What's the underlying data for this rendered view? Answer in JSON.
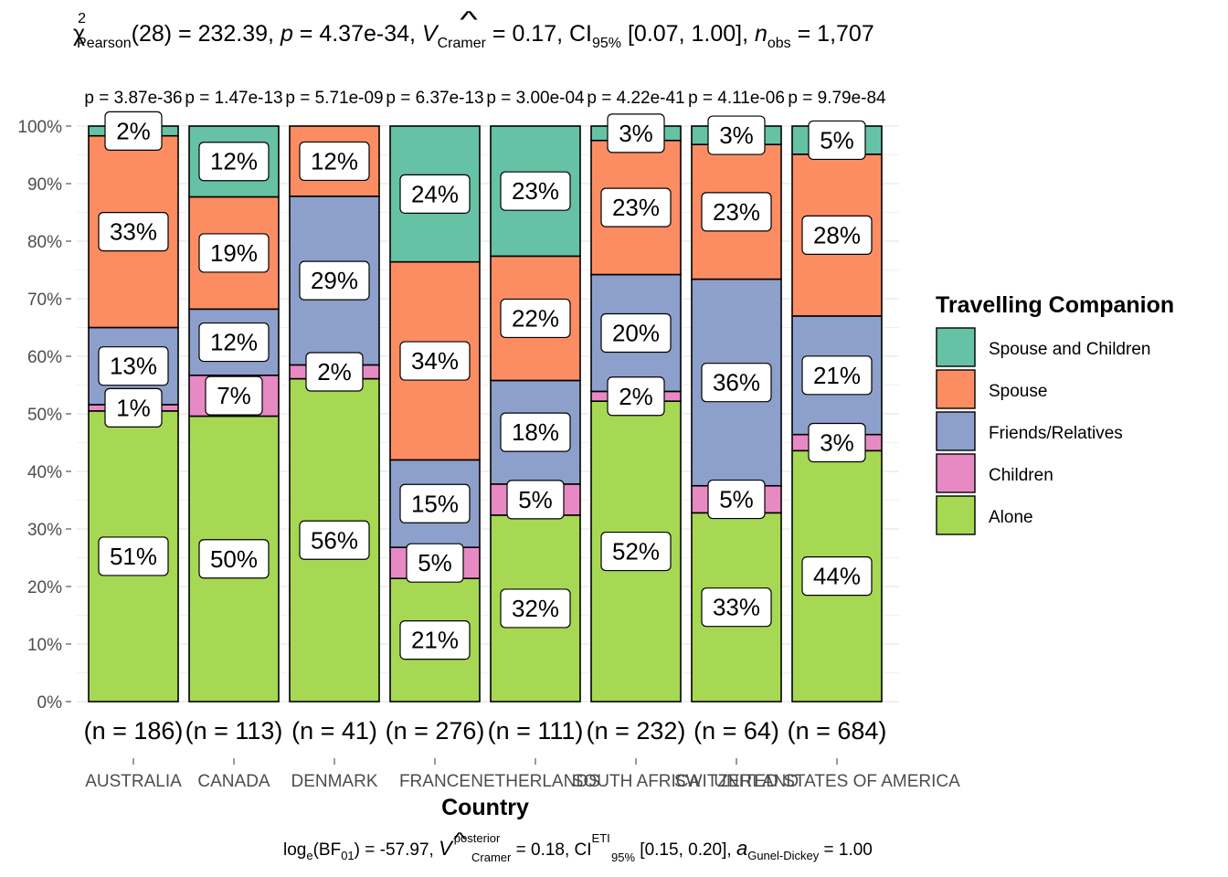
{
  "subtitle": {
    "chi": "χ",
    "chi_sup": "2",
    "chi_sub": "Pearson",
    "df_stat": "(28) = 232.39, ",
    "p_sym": "p",
    "p_val": " = 4.37e-34, ",
    "v_sym": "V",
    "v_hat": "^",
    "v_sub": "Cramer",
    "v_val": " = 0.17, CI",
    "ci_sub": "95%",
    "ci_val": " [0.07, 1.00], ",
    "n_sym": "n",
    "n_sub": "obs",
    "n_val": " = 1,707"
  },
  "caption": {
    "log": "log",
    "log_sub": "e",
    "bf": "(BF",
    "bf_sub": "01",
    "bf_val": ") = -57.97, ",
    "v_sym": "V",
    "v_sup": "posterior",
    "v_sub": "Cramer",
    "v_val": " = 0.18, CI",
    "ci_sup": "ETI",
    "ci_sub": "95%",
    "ci_val": " [0.15, 0.20], ",
    "a_sym": "a",
    "a_sub": "Gunel-Dickey",
    "a_val": " = 1.00"
  },
  "colors": {
    "Spouse and Children": "#66c2a5",
    "Spouse": "#fc8d62",
    "Friends/Relatives": "#8da0cb",
    "Children": "#e78ac3",
    "Alone": "#a6d854",
    "grid": "#ebebeb",
    "axis_text": "#4d4d4d"
  },
  "chart_data": {
    "type": "bar",
    "stacked": "percent",
    "xlabel": "Country",
    "ylabel": "",
    "ylim": [
      0,
      100
    ],
    "y_ticks": [
      "0%",
      "10%",
      "20%",
      "30%",
      "40%",
      "50%",
      "60%",
      "70%",
      "80%",
      "90%",
      "100%"
    ],
    "categories": [
      "AUSTRALIA",
      "CANADA",
      "DENMARK",
      "FRANCE",
      "NETHERLANDS",
      "SOUTH AFRICA",
      "SWITZERLAND",
      "UNITED STATES OF AMERICA"
    ],
    "p_labels": [
      "p = 3.87e-36",
      "p = 1.47e-13",
      "p = 5.71e-09",
      "p = 6.37e-13",
      "p = 3.00e-04",
      "p = 4.22e-41",
      "p = 4.11e-06",
      "p = 9.79e-84"
    ],
    "n_labels": [
      "(n = 186)",
      "(n = 113)",
      "(n = 41)",
      "(n = 276)",
      "(n = 111)",
      "(n = 232)",
      "(n = 64)",
      "(n = 684)"
    ],
    "series": [
      {
        "name": "Alone",
        "values": [
          50.5,
          49.6,
          56.1,
          21.4,
          32.4,
          52.2,
          32.8,
          43.6
        ],
        "labels": [
          "51%",
          "50%",
          "56%",
          "21%",
          "32%",
          "52%",
          "33%",
          "44%"
        ]
      },
      {
        "name": "Children",
        "values": [
          1.1,
          7.1,
          2.4,
          5.4,
          5.4,
          1.7,
          4.7,
          2.8
        ],
        "labels": [
          "1%",
          "7%",
          "2%",
          "5%",
          "5%",
          "2%",
          "5%",
          "3%"
        ]
      },
      {
        "name": "Friends/Relatives",
        "values": [
          13.4,
          11.5,
          29.3,
          15.2,
          18.0,
          20.3,
          35.9,
          20.6
        ],
        "labels": [
          "13%",
          "12%",
          "29%",
          "15%",
          "18%",
          "20%",
          "36%",
          "21%"
        ]
      },
      {
        "name": "Spouse",
        "values": [
          33.3,
          19.5,
          12.2,
          34.4,
          21.6,
          23.3,
          23.4,
          28.1
        ],
        "labels": [
          "33%",
          "19%",
          "12%",
          "34%",
          "22%",
          "23%",
          "23%",
          "28%"
        ]
      },
      {
        "name": "Spouse and Children",
        "values": [
          1.7,
          12.3,
          0.0,
          23.6,
          22.6,
          2.5,
          3.2,
          4.9
        ],
        "labels": [
          "2%",
          "12%",
          "",
          "24%",
          "23%",
          "3%",
          "3%",
          "5%"
        ]
      }
    ],
    "legend": {
      "title": "Travelling Companion",
      "position": "right",
      "entries": [
        "Spouse and Children",
        "Spouse",
        "Friends/Relatives",
        "Children",
        "Alone"
      ]
    },
    "grid": true
  }
}
